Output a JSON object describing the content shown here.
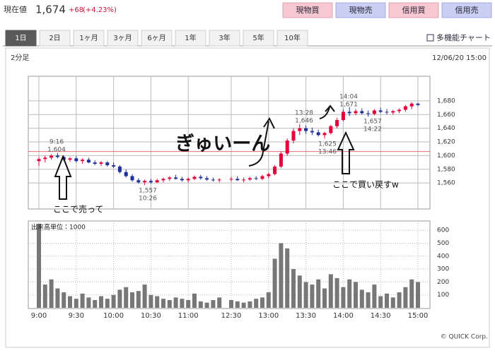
{
  "header": {
    "label": "現在値",
    "price": "1,674",
    "change": "+68",
    "change_pct": "(+4.23%)"
  },
  "buttons": [
    "現物買",
    "現物売",
    "信用買",
    "信用売"
  ],
  "tabs": [
    "1日",
    "2日",
    "1ヶ月",
    "3ヶ月",
    "6ヶ月",
    "1年",
    "3年",
    "5年",
    "10年"
  ],
  "link": "多機能チャート",
  "chart_header": {
    "interval": "2分足",
    "timestamp": "12/06/20 15:00"
  },
  "handwritten_notes": [
    "ぎゅいーん",
    "ここで売って",
    "ここで買い戻すw"
  ],
  "copyright": "© QUICK Corp.",
  "chart_data": [
    {
      "type": "candlestick",
      "open": [
        1592,
        1595,
        1597,
        1600,
        1598,
        1594,
        1596,
        1592,
        1594,
        1590,
        1588,
        1590,
        1586,
        1584,
        1576,
        1570,
        1564,
        1561,
        1563,
        1561,
        1564,
        1566,
        1568,
        1566,
        1564,
        1566,
        1569,
        1567,
        1565,
        1564,
        1565,
        1566,
        1564,
        1565,
        1567,
        1566,
        1570,
        1573,
        1584,
        1603,
        1622,
        1636,
        1640,
        1636,
        1634,
        1630,
        1633,
        1643,
        1652,
        1664,
        1662,
        1665,
        1662,
        1661,
        1666,
        1664,
        1663,
        1665,
        1667,
        1672,
        1676
      ],
      "high": [
        1598,
        1600,
        1602,
        1604,
        1600,
        1598,
        1599,
        1596,
        1597,
        1593,
        1592,
        1592,
        1590,
        1586,
        1580,
        1573,
        1567,
        1565,
        1566,
        1566,
        1568,
        1570,
        1572,
        1569,
        1568,
        1571,
        1572,
        1570,
        1568,
        1567,
        1569,
        1570,
        1568,
        1569,
        1570,
        1572,
        1575,
        1586,
        1606,
        1625,
        1640,
        1646,
        1644,
        1641,
        1638,
        1635,
        1645,
        1655,
        1668,
        1671,
        1668,
        1669,
        1666,
        1668,
        1670,
        1668,
        1667,
        1669,
        1674,
        1678,
        1677
      ],
      "low": [
        1585,
        1590,
        1594,
        1596,
        1592,
        1591,
        1590,
        1588,
        1589,
        1586,
        1585,
        1584,
        1582,
        1574,
        1568,
        1562,
        1559,
        1557,
        1559,
        1560,
        1561,
        1563,
        1565,
        1562,
        1561,
        1564,
        1565,
        1563,
        1562,
        1561,
        1562,
        1563,
        1561,
        1563,
        1564,
        1564,
        1567,
        1571,
        1582,
        1600,
        1618,
        1630,
        1632,
        1630,
        1628,
        1625,
        1631,
        1640,
        1650,
        1658,
        1659,
        1660,
        1657,
        1659,
        1662,
        1660,
        1660,
        1662,
        1664,
        1668,
        1672
      ],
      "close": [
        1595,
        1597,
        1600,
        1598,
        1594,
        1596,
        1592,
        1594,
        1590,
        1588,
        1590,
        1586,
        1584,
        1576,
        1570,
        1564,
        1561,
        1563,
        1561,
        1564,
        1566,
        1568,
        1566,
        1564,
        1566,
        1569,
        1567,
        1565,
        1564,
        1565,
        1566,
        1564,
        1565,
        1567,
        1566,
        1570,
        1573,
        1584,
        1603,
        1622,
        1636,
        1640,
        1636,
        1634,
        1630,
        1633,
        1643,
        1652,
        1664,
        1662,
        1665,
        1662,
        1661,
        1666,
        1664,
        1663,
        1665,
        1667,
        1672,
        1676,
        1674
      ],
      "up_color": "#e4003a",
      "down_color": "#1f2f9a",
      "ylim": [
        1522,
        1716
      ],
      "yticks": [
        {
          "value": 1560,
          "label": "1,560"
        },
        {
          "value": 1580,
          "label": "1,580"
        },
        {
          "value": 1600,
          "label": "1,600"
        },
        {
          "value": 1620,
          "label": "1,620"
        },
        {
          "value": 1640,
          "label": "1,640"
        },
        {
          "value": 1660,
          "label": "1,660"
        },
        {
          "value": 1680,
          "label": "1,680"
        }
      ],
      "grid": true,
      "ref_line": 1606,
      "ref_color": "#e07070",
      "annotations": [
        {
          "lines": [
            "9:16",
            "1,604"
          ]
        },
        {
          "lines": [
            "1,557",
            "10:26"
          ]
        },
        {
          "lines": [
            "13:28",
            "1,646"
          ]
        },
        {
          "lines": [
            "1,625",
            "13:46"
          ]
        },
        {
          "lines": [
            "14:04",
            "1,671"
          ]
        },
        {
          "lines": [
            "1,657",
            "14:22"
          ]
        }
      ]
    },
    {
      "type": "bar",
      "label": "出来高単位：1000",
      "categories": [
        "9:00",
        null,
        null,
        null,
        null,
        null,
        "9:30",
        null,
        null,
        null,
        null,
        null,
        "10:00",
        null,
        null,
        null,
        null,
        null,
        "10:30",
        null,
        null,
        null,
        null,
        null,
        "11:00",
        null,
        null,
        null,
        null,
        null,
        "12:30",
        null,
        null,
        null,
        null,
        null,
        "13:00",
        null,
        null,
        null,
        null,
        null,
        "13:30",
        null,
        null,
        null,
        null,
        null,
        "14:00",
        null,
        null,
        null,
        null,
        null,
        "14:30",
        null,
        null,
        null,
        null,
        null,
        "15:00"
      ],
      "values": [
        650,
        180,
        220,
        150,
        120,
        90,
        70,
        110,
        80,
        60,
        90,
        70,
        100,
        140,
        160,
        120,
        130,
        180,
        100,
        90,
        70,
        60,
        80,
        70,
        60,
        110,
        50,
        40,
        60,
        80,
        60,
        50,
        40,
        50,
        70,
        80,
        120,
        380,
        500,
        460,
        300,
        250,
        200,
        180,
        220,
        150,
        260,
        230,
        160,
        220,
        200,
        140,
        120,
        180,
        90,
        110,
        80,
        120,
        160,
        220,
        200
      ],
      "color": "#777777",
      "ylim": [
        0,
        672
      ],
      "yticks": [
        100,
        200,
        300,
        400,
        500,
        600
      ],
      "grid": true
    }
  ]
}
